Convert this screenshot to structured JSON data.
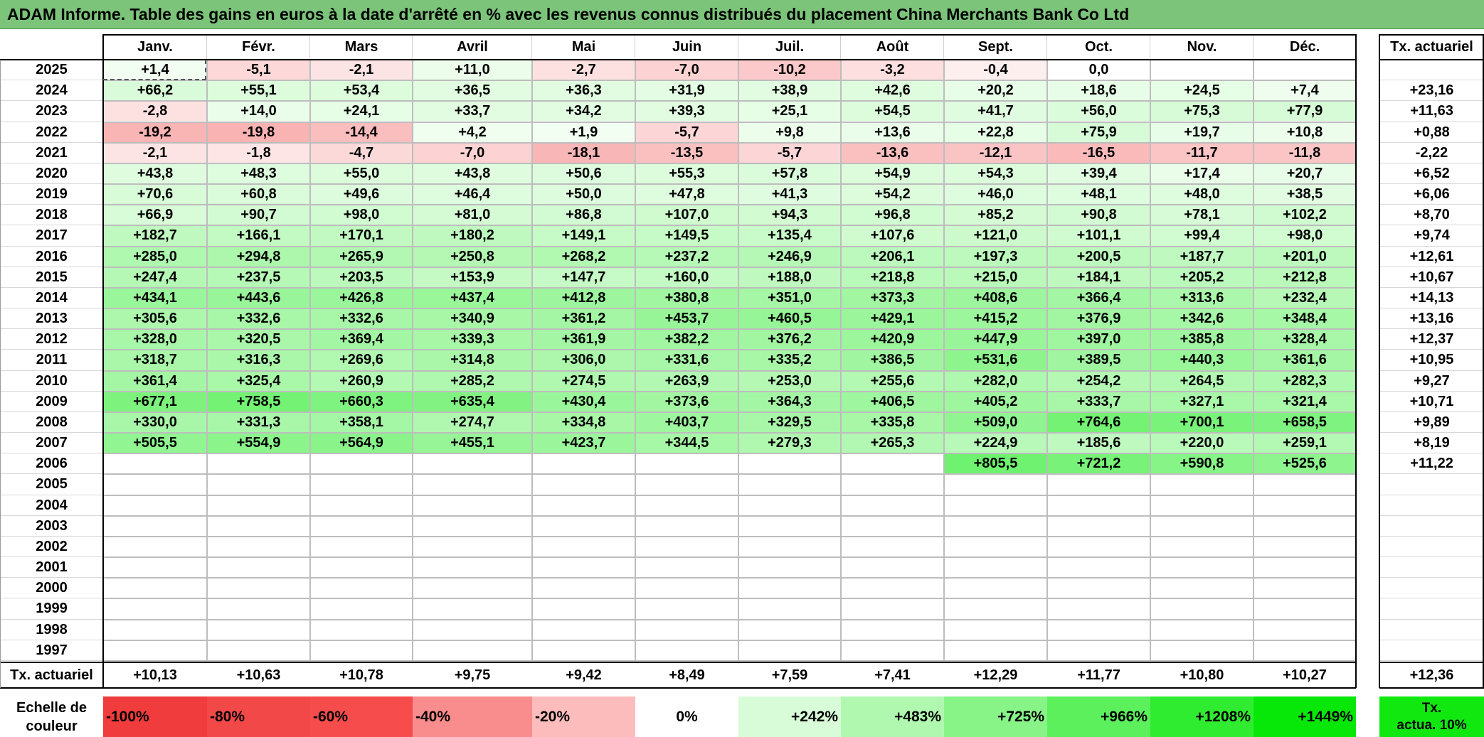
{
  "title": "ADAM Informe. Table des gains en euros à la date d'arrêté en % avec les revenus connus distribués du placement China Merchants Bank Co Ltd",
  "months": [
    "Janv.",
    "Févr.",
    "Mars",
    "Avril",
    "Mai",
    "Juin",
    "Juil.",
    "Août",
    "Sept.",
    "Oct.",
    "Nov.",
    "Déc."
  ],
  "tx_header": "Tx. actuariel",
  "rows": [
    {
      "year": "2025",
      "values": [
        "+1,4",
        "-5,1",
        "-2,1",
        "+11,0",
        "-2,7",
        "-7,0",
        "-10,2",
        "-3,2",
        "-0,4",
        "0,0",
        "",
        ""
      ],
      "tx": ""
    },
    {
      "year": "2024",
      "values": [
        "+66,2",
        "+55,1",
        "+53,4",
        "+36,5",
        "+36,3",
        "+31,9",
        "+38,9",
        "+42,6",
        "+20,2",
        "+18,6",
        "+24,5",
        "+7,4"
      ],
      "tx": "+23,16"
    },
    {
      "year": "2023",
      "values": [
        "-2,8",
        "+14,0",
        "+24,1",
        "+33,7",
        "+34,2",
        "+39,3",
        "+25,1",
        "+54,5",
        "+41,7",
        "+56,0",
        "+75,3",
        "+77,9"
      ],
      "tx": "+11,63"
    },
    {
      "year": "2022",
      "values": [
        "-19,2",
        "-19,8",
        "-14,4",
        "+4,2",
        "+1,9",
        "-5,7",
        "+9,8",
        "+13,6",
        "+22,8",
        "+75,9",
        "+19,7",
        "+10,8"
      ],
      "tx": "+0,88"
    },
    {
      "year": "2021",
      "values": [
        "-2,1",
        "-1,8",
        "-4,7",
        "-7,0",
        "-18,1",
        "-13,5",
        "-5,7",
        "-13,6",
        "-12,1",
        "-16,5",
        "-11,7",
        "-11,8"
      ],
      "tx": "-2,22"
    },
    {
      "year": "2020",
      "values": [
        "+43,8",
        "+48,3",
        "+55,0",
        "+43,8",
        "+50,6",
        "+55,3",
        "+57,8",
        "+54,9",
        "+54,3",
        "+39,4",
        "+17,4",
        "+20,7"
      ],
      "tx": "+6,52"
    },
    {
      "year": "2019",
      "values": [
        "+70,6",
        "+60,8",
        "+49,6",
        "+46,4",
        "+50,0",
        "+47,8",
        "+41,3",
        "+54,2",
        "+46,0",
        "+48,1",
        "+48,0",
        "+38,5"
      ],
      "tx": "+6,06"
    },
    {
      "year": "2018",
      "values": [
        "+66,9",
        "+90,7",
        "+98,0",
        "+81,0",
        "+86,8",
        "+107,0",
        "+94,3",
        "+96,8",
        "+85,2",
        "+90,8",
        "+78,1",
        "+102,2"
      ],
      "tx": "+8,70"
    },
    {
      "year": "2017",
      "values": [
        "+182,7",
        "+166,1",
        "+170,1",
        "+180,2",
        "+149,1",
        "+149,5",
        "+135,4",
        "+107,6",
        "+121,0",
        "+101,1",
        "+99,4",
        "+98,0"
      ],
      "tx": "+9,74"
    },
    {
      "year": "2016",
      "values": [
        "+285,0",
        "+294,8",
        "+265,9",
        "+250,8",
        "+268,2",
        "+237,2",
        "+246,9",
        "+206,1",
        "+197,3",
        "+200,5",
        "+187,7",
        "+201,0"
      ],
      "tx": "+12,61"
    },
    {
      "year": "2015",
      "values": [
        "+247,4",
        "+237,5",
        "+203,5",
        "+153,9",
        "+147,7",
        "+160,0",
        "+188,0",
        "+218,8",
        "+215,0",
        "+184,1",
        "+205,2",
        "+212,8"
      ],
      "tx": "+10,67"
    },
    {
      "year": "2014",
      "values": [
        "+434,1",
        "+443,6",
        "+426,8",
        "+437,4",
        "+412,8",
        "+380,8",
        "+351,0",
        "+373,3",
        "+408,6",
        "+366,4",
        "+313,6",
        "+232,4"
      ],
      "tx": "+14,13"
    },
    {
      "year": "2013",
      "values": [
        "+305,6",
        "+332,6",
        "+332,6",
        "+340,9",
        "+361,2",
        "+453,7",
        "+460,5",
        "+429,1",
        "+415,2",
        "+376,9",
        "+342,6",
        "+348,4"
      ],
      "tx": "+13,16"
    },
    {
      "year": "2012",
      "values": [
        "+328,0",
        "+320,5",
        "+369,4",
        "+339,3",
        "+361,9",
        "+382,2",
        "+376,2",
        "+420,9",
        "+447,9",
        "+397,0",
        "+385,8",
        "+328,4"
      ],
      "tx": "+12,37"
    },
    {
      "year": "2011",
      "values": [
        "+318,7",
        "+316,3",
        "+269,6",
        "+314,8",
        "+306,0",
        "+331,6",
        "+335,2",
        "+386,5",
        "+531,6",
        "+389,5",
        "+440,3",
        "+361,6"
      ],
      "tx": "+10,95"
    },
    {
      "year": "2010",
      "values": [
        "+361,4",
        "+325,4",
        "+260,9",
        "+285,2",
        "+274,5",
        "+263,9",
        "+253,0",
        "+255,6",
        "+282,0",
        "+254,2",
        "+264,5",
        "+282,3"
      ],
      "tx": "+9,27"
    },
    {
      "year": "2009",
      "values": [
        "+677,1",
        "+758,5",
        "+660,3",
        "+635,4",
        "+430,4",
        "+373,6",
        "+364,3",
        "+406,5",
        "+405,2",
        "+333,7",
        "+327,1",
        "+321,4"
      ],
      "tx": "+10,71"
    },
    {
      "year": "2008",
      "values": [
        "+330,0",
        "+331,3",
        "+358,1",
        "+274,7",
        "+334,8",
        "+403,7",
        "+329,5",
        "+335,8",
        "+509,0",
        "+764,6",
        "+700,1",
        "+658,5"
      ],
      "tx": "+9,89"
    },
    {
      "year": "2007",
      "values": [
        "+505,5",
        "+554,9",
        "+564,9",
        "+455,1",
        "+423,7",
        "+344,5",
        "+279,3",
        "+265,3",
        "+224,9",
        "+185,6",
        "+220,0",
        "+259,1"
      ],
      "tx": "+8,19"
    },
    {
      "year": "2006",
      "values": [
        "",
        "",
        "",
        "",
        "",
        "",
        "",
        "",
        "+805,5",
        "+721,2",
        "+590,8",
        "+525,6"
      ],
      "tx": "+11,22"
    },
    {
      "year": "2005",
      "values": [
        "",
        "",
        "",
        "",
        "",
        "",
        "",
        "",
        "",
        "",
        "",
        ""
      ],
      "tx": ""
    },
    {
      "year": "2004",
      "values": [
        "",
        "",
        "",
        "",
        "",
        "",
        "",
        "",
        "",
        "",
        "",
        ""
      ],
      "tx": ""
    },
    {
      "year": "2003",
      "values": [
        "",
        "",
        "",
        "",
        "",
        "",
        "",
        "",
        "",
        "",
        "",
        ""
      ],
      "tx": ""
    },
    {
      "year": "2002",
      "values": [
        "",
        "",
        "",
        "",
        "",
        "",
        "",
        "",
        "",
        "",
        "",
        ""
      ],
      "tx": ""
    },
    {
      "year": "2001",
      "values": [
        "",
        "",
        "",
        "",
        "",
        "",
        "",
        "",
        "",
        "",
        "",
        ""
      ],
      "tx": ""
    },
    {
      "year": "2000",
      "values": [
        "",
        "",
        "",
        "",
        "",
        "",
        "",
        "",
        "",
        "",
        "",
        ""
      ],
      "tx": ""
    },
    {
      "year": "1999",
      "values": [
        "",
        "",
        "",
        "",
        "",
        "",
        "",
        "",
        "",
        "",
        "",
        ""
      ],
      "tx": ""
    },
    {
      "year": "1998",
      "values": [
        "",
        "",
        "",
        "",
        "",
        "",
        "",
        "",
        "",
        "",
        "",
        ""
      ],
      "tx": ""
    },
    {
      "year": "1997",
      "values": [
        "",
        "",
        "",
        "",
        "",
        "",
        "",
        "",
        "",
        "",
        "",
        ""
      ],
      "tx": ""
    }
  ],
  "footer": {
    "label": "Tx. actuariel",
    "values": [
      "+10,13",
      "+10,63",
      "+10,78",
      "+9,75",
      "+9,42",
      "+8,49",
      "+7,59",
      "+7,41",
      "+12,29",
      "+11,77",
      "+10,80",
      "+10,27"
    ],
    "total": "+12,36"
  },
  "scale": {
    "label_line1": "Echelle de",
    "label_line2": "couleur",
    "items": [
      {
        "text": "-100%",
        "color": "#f03c3c",
        "align": "left"
      },
      {
        "text": "-80%",
        "color": "#f34848",
        "align": "left"
      },
      {
        "text": "-60%",
        "color": "#f64c4c",
        "align": "left"
      },
      {
        "text": "-40%",
        "color": "#f98c8c",
        "align": "left"
      },
      {
        "text": "-20%",
        "color": "#fcbcbc",
        "align": "left"
      },
      {
        "text": "0%",
        "color": "#ffffff",
        "align": "center"
      },
      {
        "text": "+242%",
        "color": "#d8fcd8",
        "align": "right"
      },
      {
        "text": "+483%",
        "color": "#b0f8b0",
        "align": "right"
      },
      {
        "text": "+725%",
        "color": "#88f488",
        "align": "right"
      },
      {
        "text": "+966%",
        "color": "#5cf05c",
        "align": "right"
      },
      {
        "text": "+1208%",
        "color": "#30ec30",
        "align": "right"
      },
      {
        "text": "+1449%",
        "color": "#08e808",
        "align": "right"
      }
    ],
    "tx_label_line1": "Tx.",
    "tx_label_line2": "actua. 10%",
    "tx_color": "#10e810"
  },
  "colors": {
    "title_bar": "#7cc47a",
    "grid": "#bdbdbd",
    "border": "#000000"
  }
}
